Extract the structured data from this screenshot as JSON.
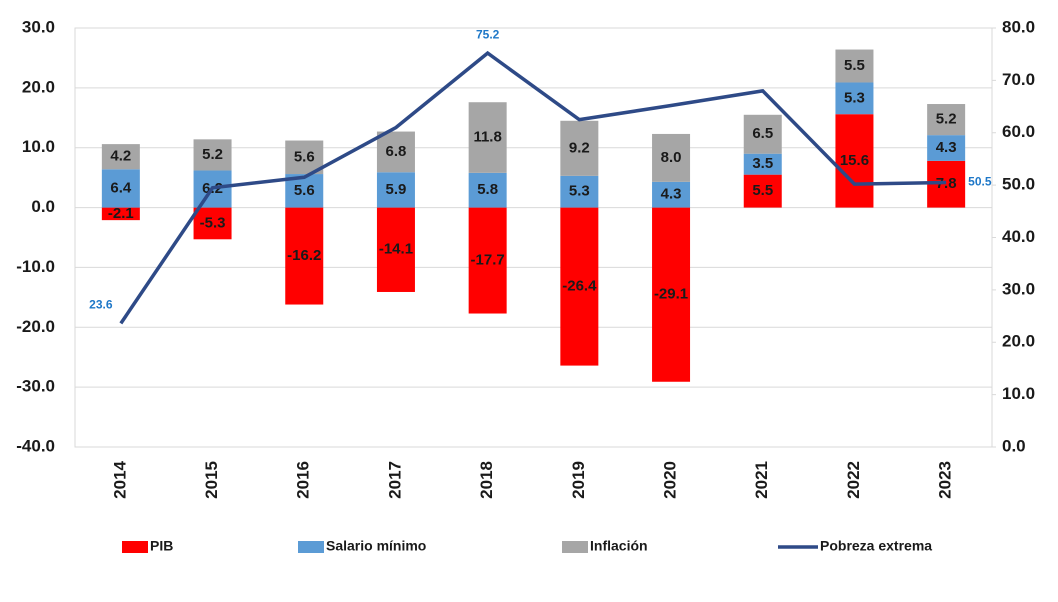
{
  "chart_data": {
    "type": "bar",
    "categories": [
      "2014",
      "2015",
      "2016",
      "2017",
      "2018",
      "2019",
      "2020",
      "2021",
      "2022",
      "2023"
    ],
    "series": [
      {
        "name": "PIB",
        "color": "#ff0000",
        "values": [
          -2.1,
          -5.3,
          -16.2,
          -14.1,
          -17.7,
          -26.4,
          -29.1,
          5.5,
          15.6,
          7.8
        ]
      },
      {
        "name": "Salario mínimo",
        "color": "#5b9bd5",
        "values": [
          6.4,
          6.2,
          5.6,
          5.9,
          5.8,
          5.3,
          4.3,
          3.5,
          5.3,
          4.3
        ]
      },
      {
        "name": "Inflación",
        "color": "#a6a6a6",
        "values": [
          4.2,
          5.2,
          5.6,
          6.8,
          11.8,
          9.2,
          8.0,
          6.5,
          5.5,
          5.2
        ],
        "value_labels": [
          "4.2",
          "5.2",
          "5.6",
          "6.8",
          "11.8",
          "9.2",
          "8.0",
          "6.5",
          "5.5",
          "5.2"
        ]
      },
      {
        "name": "Pobreza extrema",
        "color": "#2e4a87",
        "type": "line",
        "axis": "y2",
        "values": [
          23.6,
          49.5,
          51.5,
          61.0,
          75.2,
          62.5,
          65.2,
          68.0,
          50.2,
          50.5
        ],
        "value_labels": [
          "23.6",
          null,
          null,
          null,
          "75.2",
          null,
          null,
          null,
          null,
          "50.5"
        ]
      }
    ],
    "ylim": [
      -40,
      30
    ],
    "yticks": [
      {
        "value": -40,
        "label": "-40.0"
      },
      {
        "value": -30,
        "label": "-30.0"
      },
      {
        "value": -20,
        "label": "-20.0"
      },
      {
        "value": -10,
        "label": "-10.0"
      },
      {
        "value": 0,
        "label": "0.0"
      },
      {
        "value": 10,
        "label": "10.0"
      },
      {
        "value": 20,
        "label": "20.0"
      },
      {
        "value": 30,
        "label": "30.0"
      }
    ],
    "y2lim": [
      0,
      80
    ],
    "y2ticks": [
      {
        "value": 0,
        "label": "0.0"
      },
      {
        "value": 10,
        "label": "10.0"
      },
      {
        "value": 20,
        "label": "20.0"
      },
      {
        "value": 30,
        "label": "30.0"
      },
      {
        "value": 40,
        "label": "40.0"
      },
      {
        "value": 50,
        "label": "50.0"
      },
      {
        "value": 60,
        "label": "60.0"
      },
      {
        "value": 70,
        "label": "70.0"
      },
      {
        "value": 80,
        "label": "80.0"
      }
    ],
    "grid": true,
    "legend": "bottom"
  }
}
